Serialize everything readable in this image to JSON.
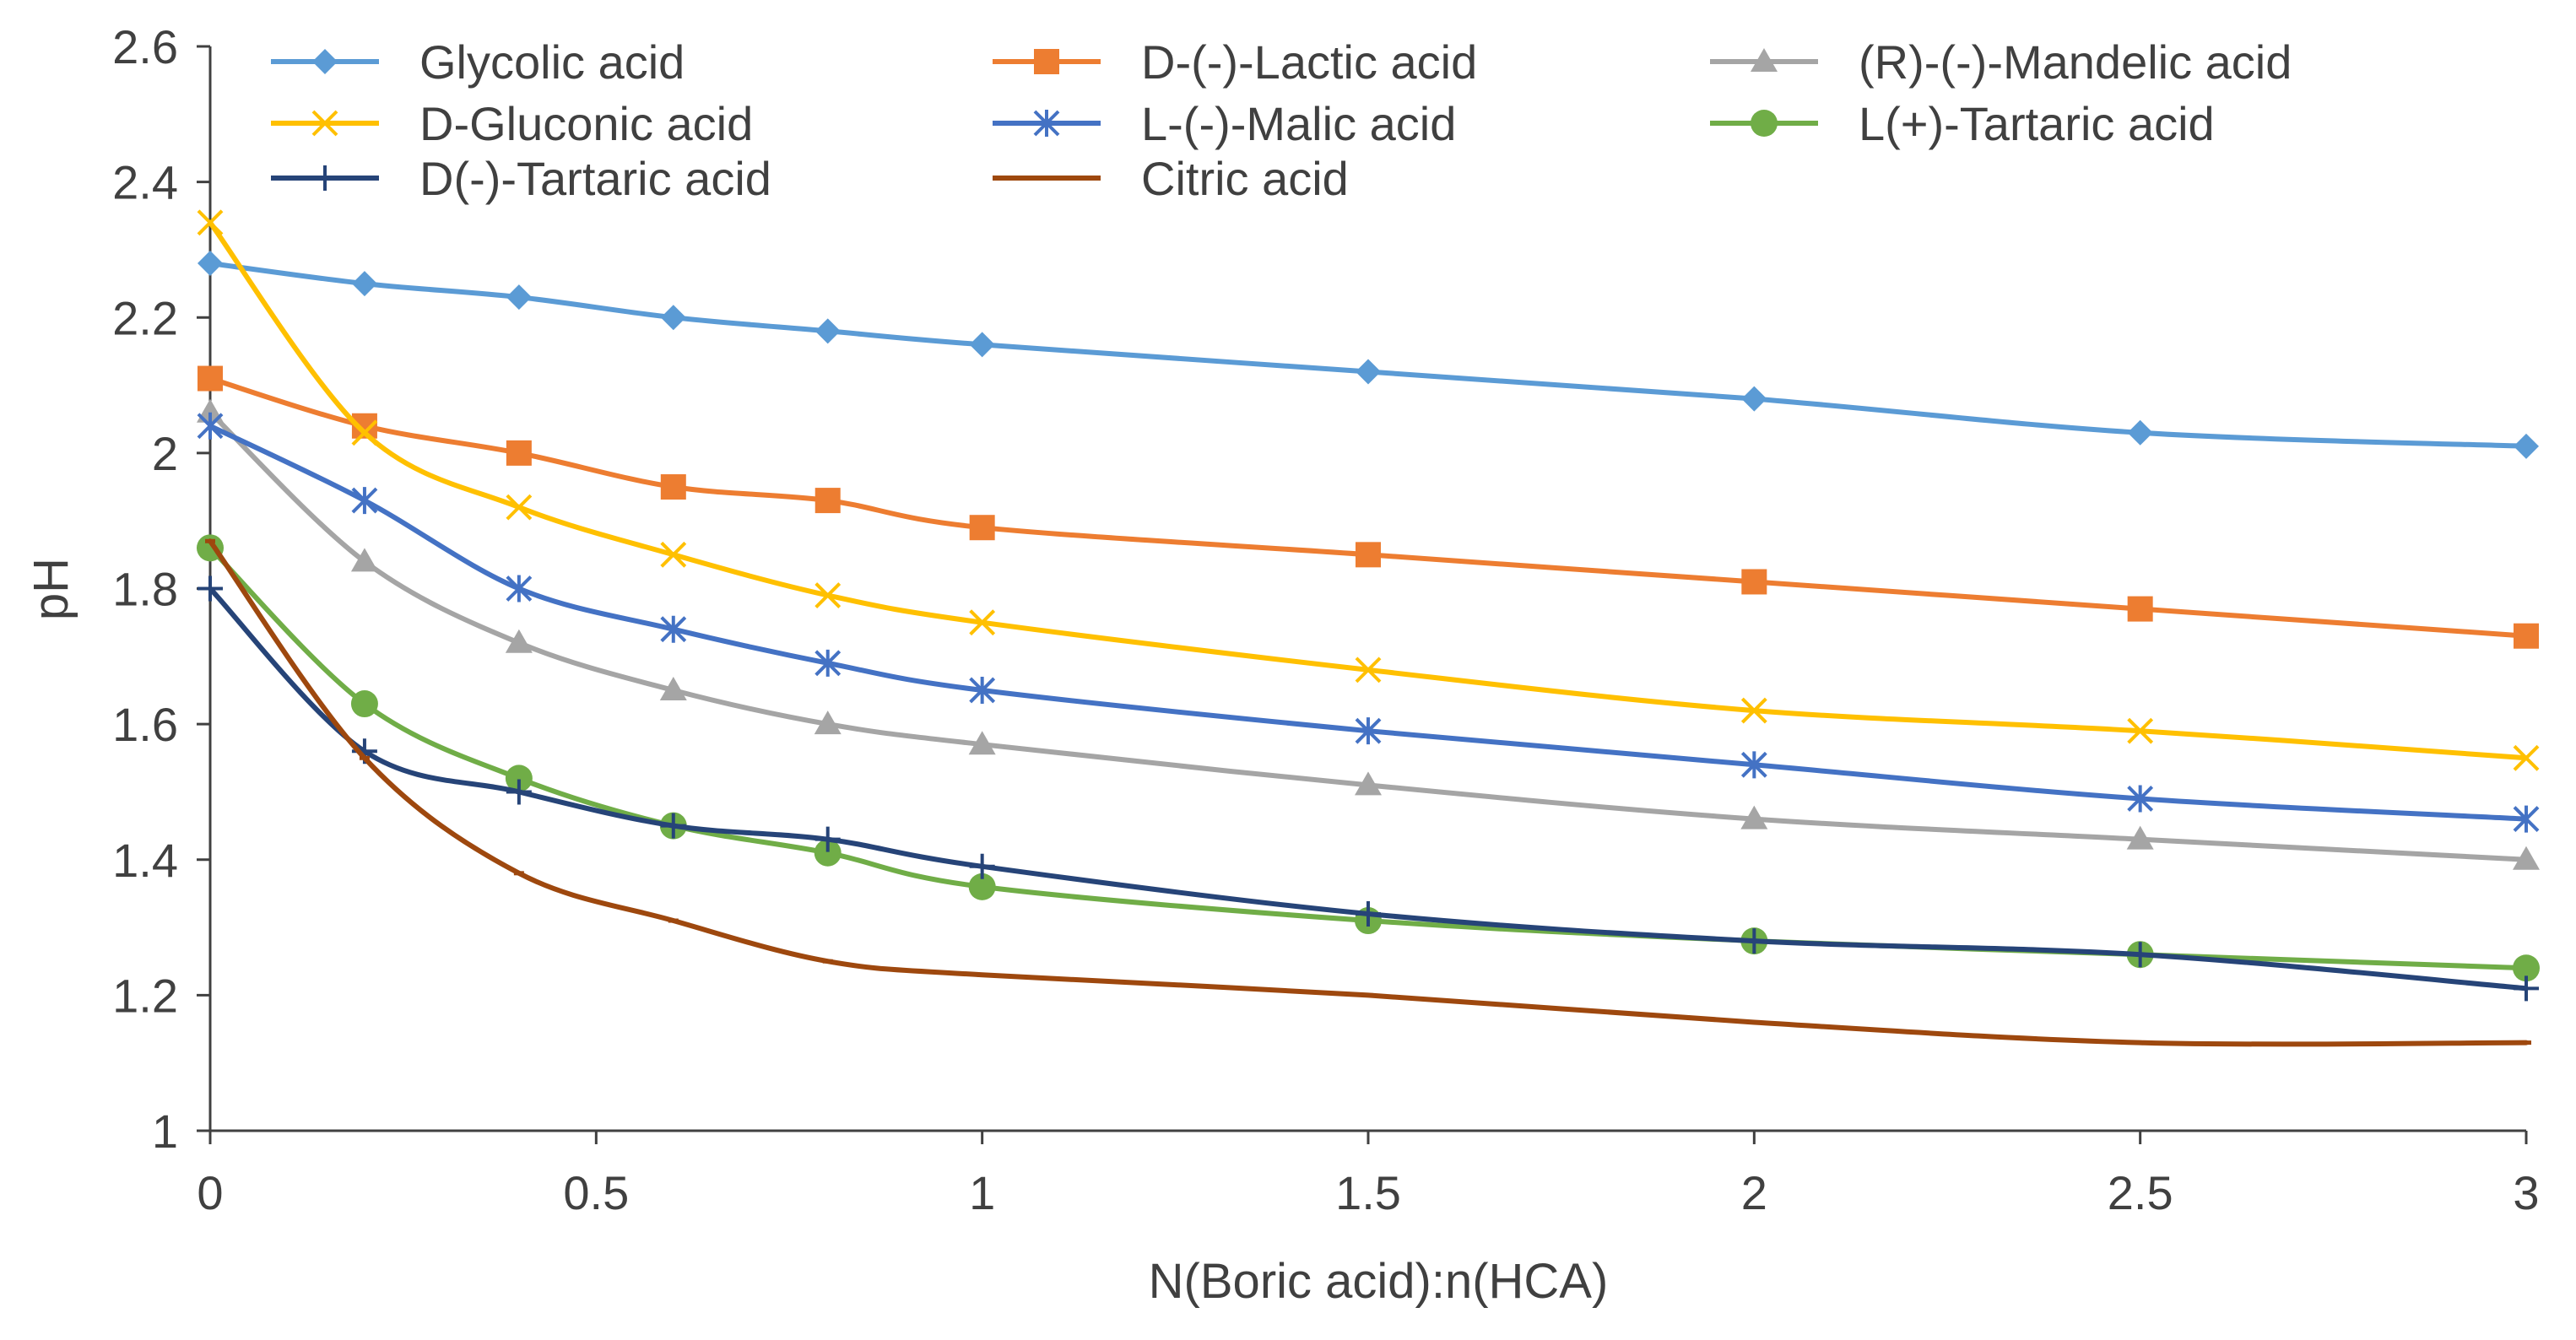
{
  "chart_data": {
    "type": "line",
    "title": "",
    "xlabel": "N(Boric acid):n(HCA)",
    "ylabel": "pH",
    "xlim": [
      0,
      3
    ],
    "ylim": [
      1,
      2.6
    ],
    "x": [
      0,
      0.2,
      0.4,
      0.6,
      0.8,
      1,
      1.5,
      2,
      2.5,
      3
    ],
    "x_ticks": [
      0,
      0.5,
      1,
      1.5,
      2,
      2.5,
      3
    ],
    "x_tick_labels": [
      "0",
      "0.5",
      "1",
      "1.5",
      "2",
      "2.5",
      "3"
    ],
    "y_ticks": [
      1,
      1.2,
      1.4,
      1.6,
      1.8,
      2,
      2.2,
      2.4,
      2.6
    ],
    "y_tick_labels": [
      "1",
      "1.2",
      "1.4",
      "1.6",
      "1.8",
      "2",
      "2.2",
      "2.4",
      "2.6"
    ],
    "grid": false,
    "legend_position": "top",
    "series": [
      {
        "name": "Glycolic acid",
        "color": "#5B9BD5",
        "marker": "diamond",
        "values": [
          2.28,
          2.25,
          2.23,
          2.2,
          2.18,
          2.16,
          2.12,
          2.08,
          2.03,
          2.01
        ]
      },
      {
        "name": "D-(-)-Lactic acid",
        "color": "#ED7D31",
        "marker": "square",
        "values": [
          2.11,
          2.04,
          2.0,
          1.95,
          1.93,
          1.89,
          1.85,
          1.81,
          1.77,
          1.73
        ]
      },
      {
        "name": "(R)-(-)-Mandelic acid",
        "color": "#A5A5A5",
        "marker": "triangle",
        "values": [
          2.06,
          1.84,
          1.72,
          1.65,
          1.6,
          1.57,
          1.51,
          1.46,
          1.43,
          1.4
        ]
      },
      {
        "name": "D-Gluconic acid",
        "color": "#FFC000",
        "marker": "x",
        "values": [
          2.34,
          2.03,
          1.92,
          1.85,
          1.79,
          1.75,
          1.68,
          1.62,
          1.59,
          1.55
        ]
      },
      {
        "name": "L-(-)-Malic acid",
        "color": "#4472C4",
        "marker": "asterisk",
        "values": [
          2.04,
          1.93,
          1.8,
          1.74,
          1.69,
          1.65,
          1.59,
          1.54,
          1.49,
          1.46
        ]
      },
      {
        "name": "L(+)-Tartaric acid",
        "color": "#70AD47",
        "marker": "circle",
        "values": [
          1.86,
          1.63,
          1.52,
          1.45,
          1.41,
          1.36,
          1.31,
          1.28,
          1.26,
          1.24
        ]
      },
      {
        "name": "D(-)-Tartaric acid",
        "color": "#264478",
        "marker": "plus",
        "values": [
          1.8,
          1.56,
          1.5,
          1.45,
          1.43,
          1.39,
          1.32,
          1.28,
          1.26,
          1.21
        ]
      },
      {
        "name": "Citric acid",
        "color": "#9E480E",
        "marker": "dash",
        "values": [
          1.87,
          1.55,
          1.38,
          1.31,
          1.25,
          1.23,
          1.2,
          1.16,
          1.13,
          1.13
        ]
      }
    ]
  }
}
